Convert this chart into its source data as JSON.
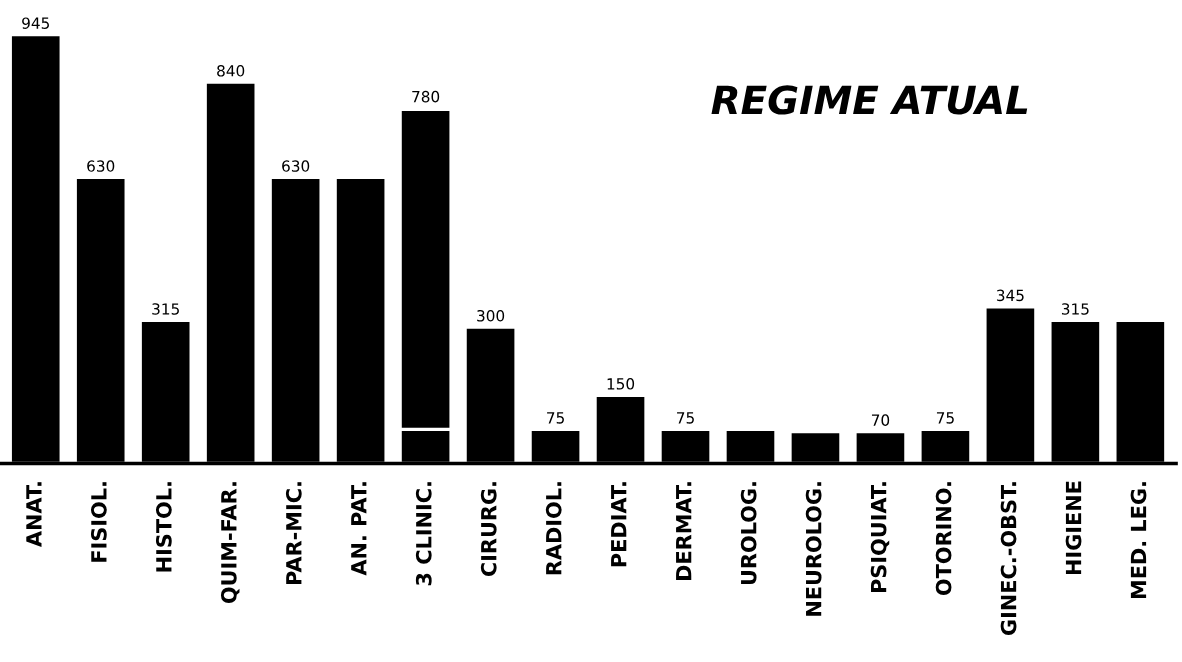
{
  "chart_data": {
    "type": "bar",
    "title": "REGIME ATUAL",
    "categories": [
      "ANAT.",
      "FISIOL.",
      "HISTOL.",
      "QUIM-FAR.",
      "PAR-MIC.",
      "AN. PAT.",
      "3 CLINIC.",
      "CIRURG.",
      "RADIOL.",
      "PEDIAT.",
      "DERMAT.",
      "UROLOG.",
      "NEUROLOG.",
      "PSIQUIAT.",
      "OTORINO.",
      "GINEC.-OBST.",
      "HIGIENE",
      "MED. LEG."
    ],
    "series": [
      {
        "color": "#000000",
        "values": [
          945,
          630,
          315,
          840,
          630,
          630,
          75,
          300,
          75,
          150,
          75,
          75,
          70,
          70,
          75,
          345,
          315,
          315
        ],
        "value_labels": [
          "945",
          "630",
          "315",
          "840",
          "630",
          null,
          null,
          "300",
          "75",
          "150",
          "75",
          null,
          null,
          "70",
          "75",
          "345",
          "315",
          null
        ]
      },
      {
        "color": "#000000",
        "values": [
          null,
          null,
          null,
          null,
          null,
          null,
          705,
          null,
          null,
          null,
          null,
          null,
          null,
          null,
          null,
          null,
          null,
          null
        ]
      }
    ],
    "stacked": true,
    "totals": [
      null,
      null,
      null,
      null,
      null,
      null,
      "780",
      null,
      null,
      null,
      null,
      null,
      null,
      null,
      null,
      null,
      null,
      null
    ],
    "grid": false,
    "legend": false
  }
}
